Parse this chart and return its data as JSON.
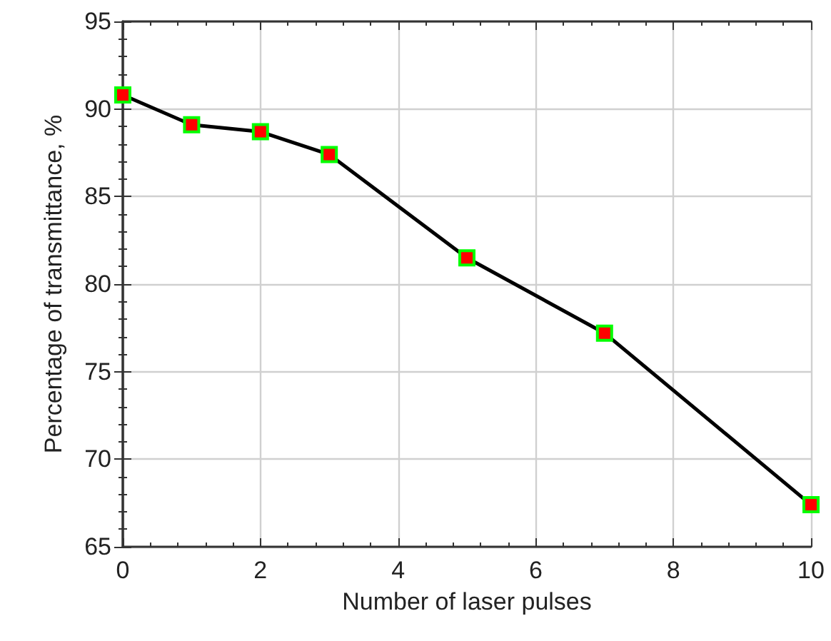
{
  "chart_data": {
    "type": "line",
    "xlabel": "Number of laser pulses",
    "ylabel": "Percentage of transmittance, %",
    "x": [
      0,
      1,
      2,
      3,
      5,
      7,
      10
    ],
    "series": [
      {
        "color": "#000000",
        "colors": [
          "#ff0000",
          "#ff0000",
          "#ff0000",
          "#ff0000",
          "#ff0000",
          "#ff0000",
          "#ff0000"
        ],
        "values": [
          90.8,
          89.1,
          88.7,
          87.4,
          81.5,
          77.2,
          67.4
        ]
      }
    ],
    "xlim": [
      0,
      10
    ],
    "xticks": [
      0,
      2,
      4,
      6,
      8,
      10
    ],
    "ylim": [
      65,
      95
    ],
    "yticks": [
      65,
      70,
      75,
      80,
      85,
      90,
      95
    ],
    "grid": true,
    "marker": "square",
    "line_style": "solid"
  }
}
